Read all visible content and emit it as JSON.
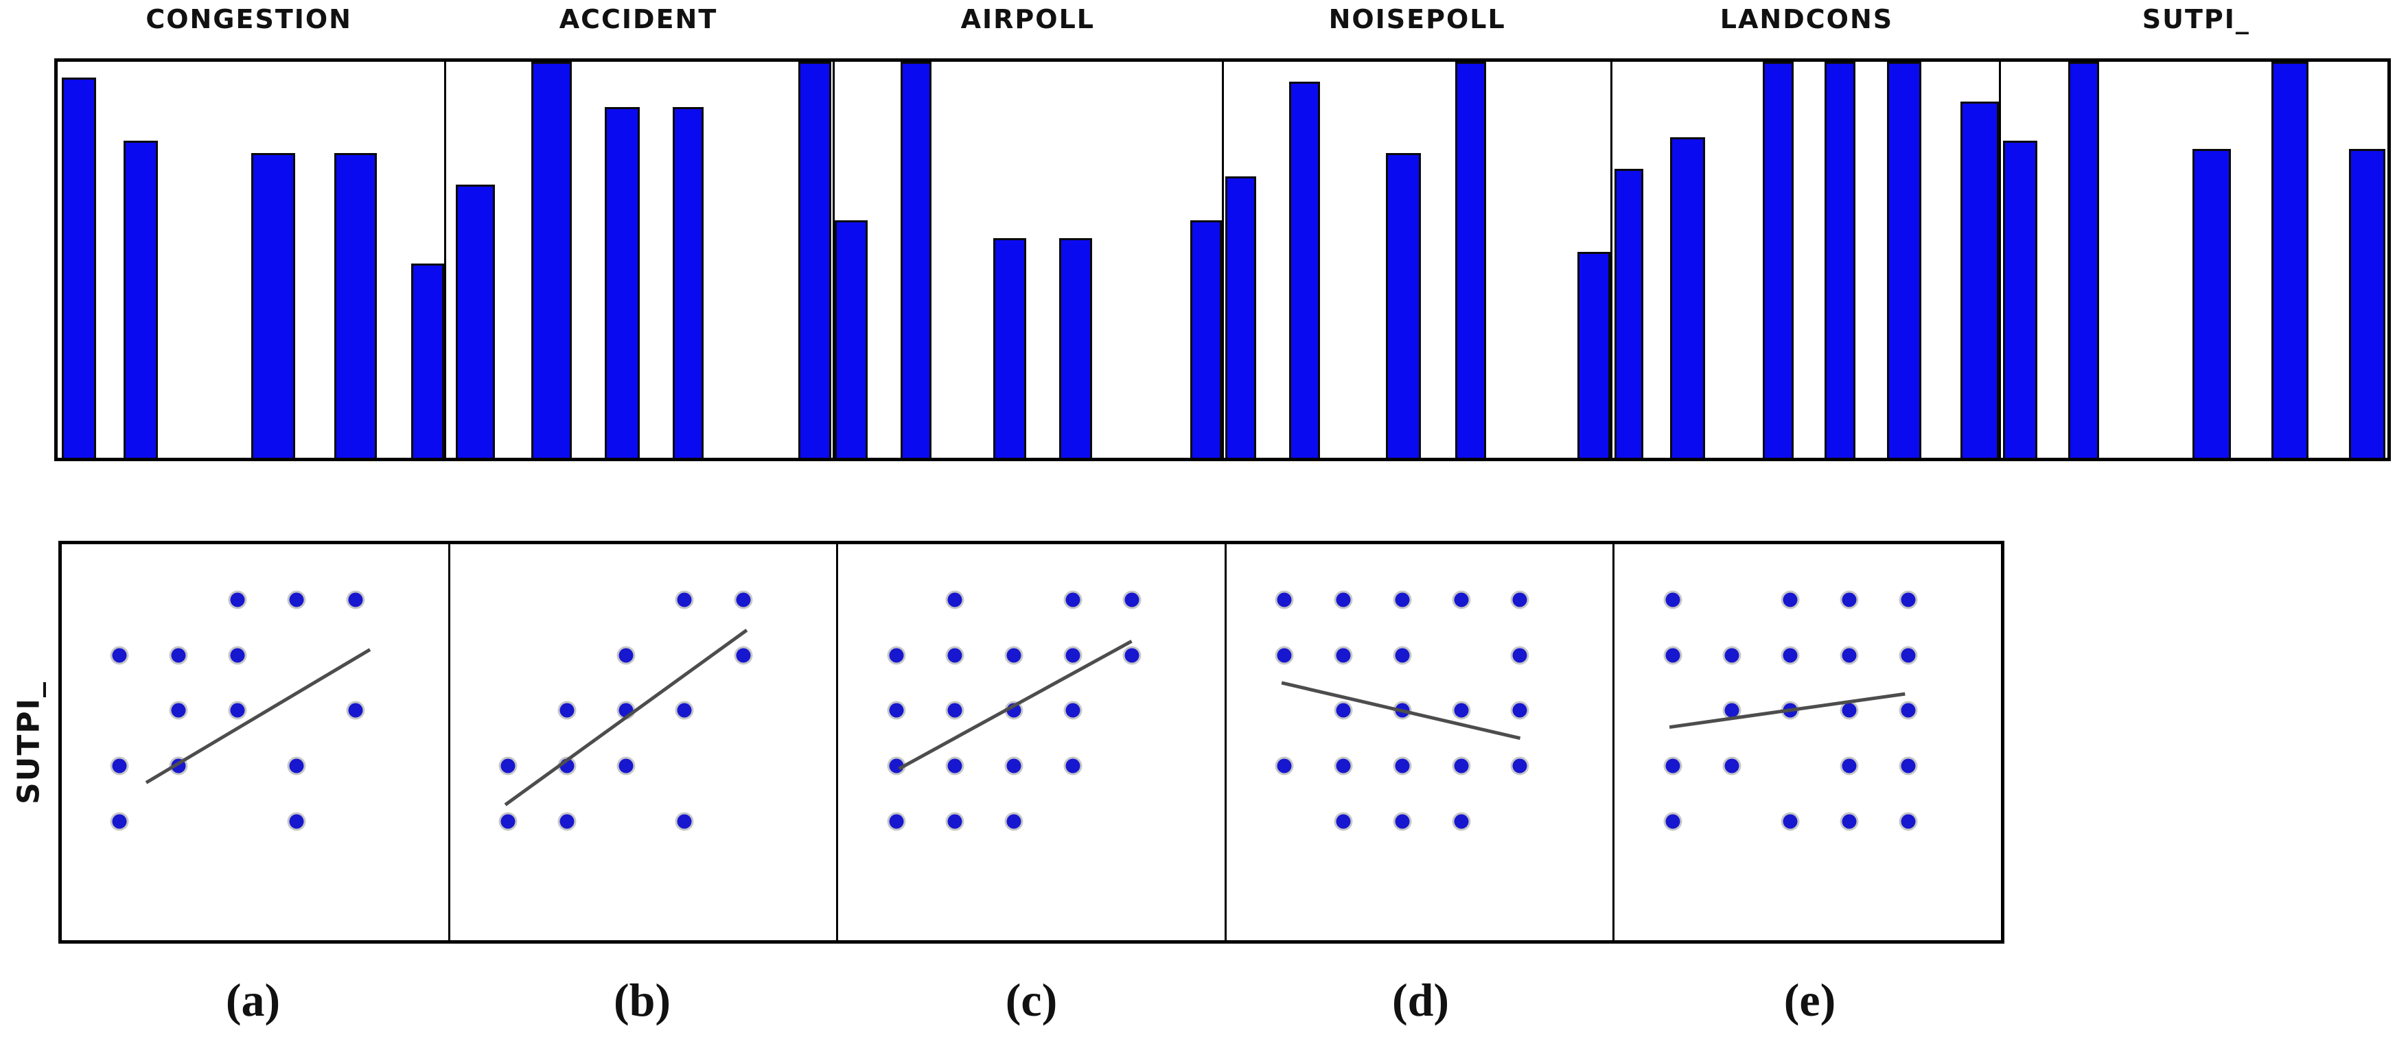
{
  "y_axis_label": "SUTPI_",
  "colors": {
    "bar_fill": "#0a0af0",
    "bar_border": "#0a0a0a",
    "dot_fill": "#1717cf",
    "trend_line": "#4d4d4d",
    "box_border": "#000000"
  },
  "chart_data": [
    {
      "type": "bar",
      "title": "CONGESTION",
      "note": "histogram, no axis tick labels shown; heights are fractions of panel height, x0/x1 are fractions of panel width",
      "bars": [
        {
          "x0": 0.01,
          "x1": 0.1,
          "h": 0.96
        },
        {
          "x0": 0.17,
          "x1": 0.26,
          "h": 0.8
        },
        {
          "x0": 0.5,
          "x1": 0.615,
          "h": 0.77
        },
        {
          "x0": 0.715,
          "x1": 0.825,
          "h": 0.77
        },
        {
          "x0": 0.915,
          "x1": 1.0,
          "h": 0.49
        }
      ]
    },
    {
      "type": "bar",
      "title": "ACCIDENT",
      "bars": [
        {
          "x0": 0.025,
          "x1": 0.125,
          "h": 0.69
        },
        {
          "x0": 0.22,
          "x1": 0.325,
          "h": 1.0
        },
        {
          "x0": 0.41,
          "x1": 0.5,
          "h": 0.885
        },
        {
          "x0": 0.585,
          "x1": 0.665,
          "h": 0.885
        },
        {
          "x0": 0.91,
          "x1": 0.995,
          "h": 1.0
        }
      ]
    },
    {
      "type": "bar",
      "title": "AIRPOLL",
      "bars": [
        {
          "x0": 0.0,
          "x1": 0.085,
          "h": 0.6
        },
        {
          "x0": 0.17,
          "x1": 0.25,
          "h": 1.0
        },
        {
          "x0": 0.41,
          "x1": 0.495,
          "h": 0.555
        },
        {
          "x0": 0.58,
          "x1": 0.665,
          "h": 0.555
        },
        {
          "x0": 0.92,
          "x1": 1.0,
          "h": 0.6
        }
      ]
    },
    {
      "type": "bar",
      "title": "NOISEPOLL",
      "bars": [
        {
          "x0": 0.005,
          "x1": 0.085,
          "h": 0.71
        },
        {
          "x0": 0.17,
          "x1": 0.25,
          "h": 0.95
        },
        {
          "x0": 0.42,
          "x1": 0.51,
          "h": 0.77
        },
        {
          "x0": 0.6,
          "x1": 0.68,
          "h": 1.0
        },
        {
          "x0": 0.915,
          "x1": 1.0,
          "h": 0.52
        }
      ]
    },
    {
      "type": "bar",
      "title": "LANDCONS",
      "bars": [
        {
          "x0": 0.005,
          "x1": 0.08,
          "h": 0.73
        },
        {
          "x0": 0.15,
          "x1": 0.24,
          "h": 0.81
        },
        {
          "x0": 0.39,
          "x1": 0.47,
          "h": 1.0
        },
        {
          "x0": 0.55,
          "x1": 0.63,
          "h": 1.0
        },
        {
          "x0": 0.71,
          "x1": 0.8,
          "h": 1.0
        },
        {
          "x0": 0.9,
          "x1": 1.0,
          "h": 0.9
        }
      ]
    },
    {
      "type": "bar",
      "title": "SUTPI_",
      "bars": [
        {
          "x0": 0.005,
          "x1": 0.095,
          "h": 0.8
        },
        {
          "x0": 0.175,
          "x1": 0.255,
          "h": 1.0
        },
        {
          "x0": 0.495,
          "x1": 0.595,
          "h": 0.78
        },
        {
          "x0": 0.7,
          "x1": 0.795,
          "h": 1.0
        },
        {
          "x0": 0.9,
          "x1": 0.995,
          "h": 0.78
        }
      ]
    },
    {
      "type": "scatter",
      "panel_label": "(a)",
      "xlabel": "CONGESTION",
      "ylabel": "SUTPI_",
      "xlim": [
        0.5,
        5.5
      ],
      "ylim": [
        0.5,
        5.5
      ],
      "points": [
        [
          3,
          5
        ],
        [
          4,
          5
        ],
        [
          5,
          5
        ],
        [
          1,
          4
        ],
        [
          2,
          4
        ],
        [
          3,
          4
        ],
        [
          2,
          3
        ],
        [
          3,
          3
        ],
        [
          5,
          3
        ],
        [
          1,
          2
        ],
        [
          2,
          2
        ],
        [
          4,
          2
        ],
        [
          1,
          1
        ],
        [
          4,
          1
        ]
      ],
      "trend": [
        [
          1.45,
          1.7
        ],
        [
          5.25,
          4.1
        ]
      ]
    },
    {
      "type": "scatter",
      "panel_label": "(b)",
      "xlabel": "ACCIDENT",
      "ylabel": "SUTPI_",
      "xlim": [
        0.5,
        5.5
      ],
      "ylim": [
        0.5,
        5.5
      ],
      "points": [
        [
          4,
          5
        ],
        [
          5,
          5
        ],
        [
          3,
          4
        ],
        [
          5,
          4
        ],
        [
          2,
          3
        ],
        [
          3,
          3
        ],
        [
          4,
          3
        ],
        [
          1,
          2
        ],
        [
          2,
          2
        ],
        [
          3,
          2
        ],
        [
          1,
          1
        ],
        [
          2,
          1
        ],
        [
          4,
          1
        ]
      ],
      "trend": [
        [
          0.95,
          1.3
        ],
        [
          5.05,
          4.45
        ]
      ]
    },
    {
      "type": "scatter",
      "panel_label": "(c)",
      "xlabel": "AIRPOLL",
      "ylabel": "SUTPI_",
      "xlim": [
        0.5,
        5.5
      ],
      "ylim": [
        0.5,
        5.5
      ],
      "points": [
        [
          2,
          5
        ],
        [
          4,
          5
        ],
        [
          5,
          5
        ],
        [
          1,
          4
        ],
        [
          2,
          4
        ],
        [
          3,
          4
        ],
        [
          4,
          4
        ],
        [
          5,
          4
        ],
        [
          1,
          3
        ],
        [
          2,
          3
        ],
        [
          3,
          3
        ],
        [
          4,
          3
        ],
        [
          1,
          2
        ],
        [
          2,
          2
        ],
        [
          3,
          2
        ],
        [
          4,
          2
        ],
        [
          1,
          1
        ],
        [
          2,
          1
        ],
        [
          3,
          1
        ]
      ],
      "trend": [
        [
          1.05,
          1.95
        ],
        [
          5.0,
          4.25
        ]
      ]
    },
    {
      "type": "scatter",
      "panel_label": "(d)",
      "xlabel": "NOISEPOLL",
      "ylabel": "SUTPI_",
      "xlim": [
        0.5,
        5.5
      ],
      "ylim": [
        0.5,
        5.5
      ],
      "points": [
        [
          1,
          5
        ],
        [
          2,
          5
        ],
        [
          3,
          5
        ],
        [
          4,
          5
        ],
        [
          5,
          5
        ],
        [
          1,
          4
        ],
        [
          2,
          4
        ],
        [
          3,
          4
        ],
        [
          5,
          4
        ],
        [
          2,
          3
        ],
        [
          3,
          3
        ],
        [
          4,
          3
        ],
        [
          5,
          3
        ],
        [
          1,
          2
        ],
        [
          2,
          2
        ],
        [
          3,
          2
        ],
        [
          4,
          2
        ],
        [
          5,
          2
        ],
        [
          2,
          1
        ],
        [
          3,
          1
        ],
        [
          4,
          1
        ]
      ],
      "trend": [
        [
          0.95,
          3.5
        ],
        [
          5.0,
          2.5
        ]
      ]
    },
    {
      "type": "scatter",
      "panel_label": "(e)",
      "xlabel": "LANDCONS",
      "ylabel": "SUTPI_",
      "xlim": [
        0.5,
        5.5
      ],
      "ylim": [
        0.5,
        5.5
      ],
      "points": [
        [
          1,
          5
        ],
        [
          3,
          5
        ],
        [
          4,
          5
        ],
        [
          5,
          5
        ],
        [
          1,
          4
        ],
        [
          2,
          4
        ],
        [
          3,
          4
        ],
        [
          4,
          4
        ],
        [
          5,
          4
        ],
        [
          2,
          3
        ],
        [
          3,
          3
        ],
        [
          4,
          3
        ],
        [
          5,
          3
        ],
        [
          1,
          2
        ],
        [
          2,
          2
        ],
        [
          4,
          2
        ],
        [
          5,
          2
        ],
        [
          1,
          1
        ],
        [
          3,
          1
        ],
        [
          4,
          1
        ],
        [
          5,
          1
        ]
      ],
      "trend": [
        [
          0.95,
          2.7
        ],
        [
          4.95,
          3.3
        ]
      ]
    }
  ]
}
